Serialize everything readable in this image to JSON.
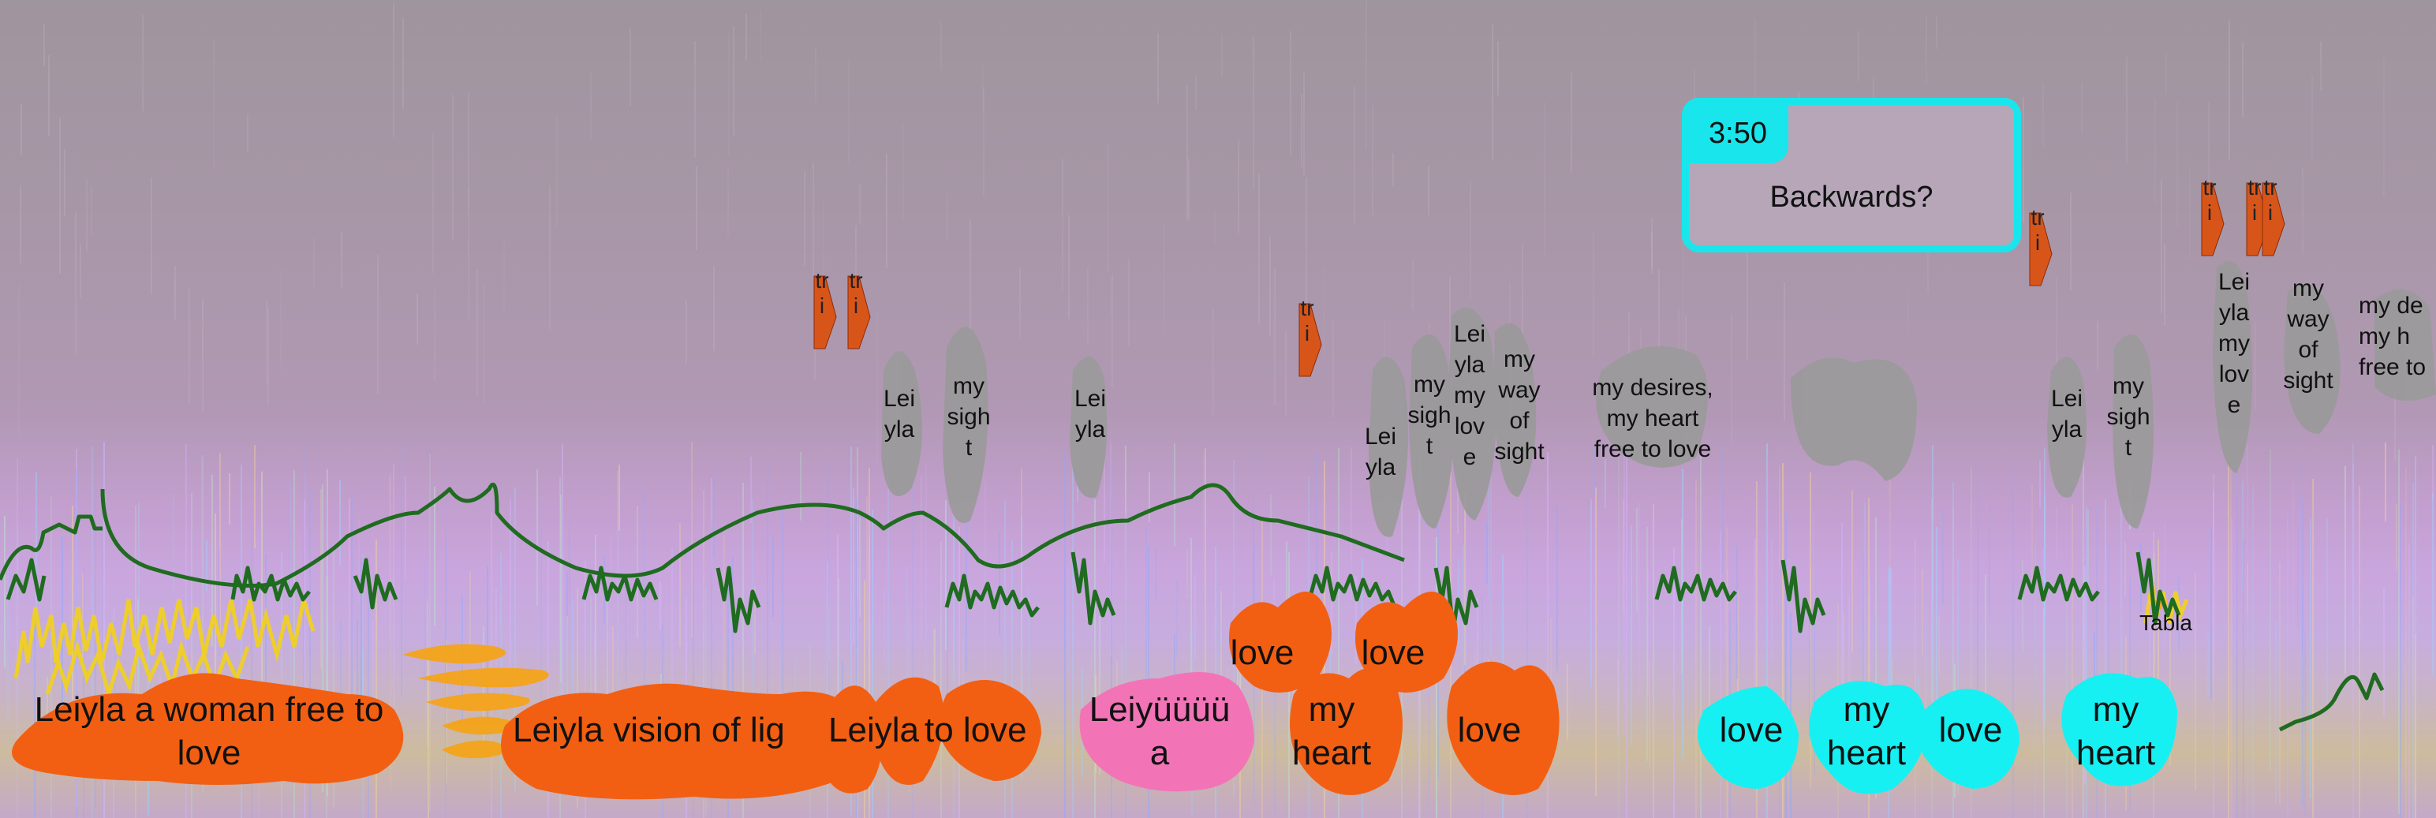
{
  "note": {
    "time": "3:50",
    "text": "Backwards?"
  },
  "trill_label": "tr\ni",
  "tabla_label": "Tabla",
  "gray_labels": {
    "leiyla_1": "Lei\nyla",
    "my_sight_1": "my\nsigh\nt",
    "leiyla_2": "Lei\nyla",
    "leiyla_3": "Lei\nyla",
    "my_sight_2": "my\nsigh\nt",
    "leiyla_my_love_1": "Lei\nyla\nmy\nlov\ne",
    "my_way_of_sight_1": "my\nway\nof\nsight",
    "my_desires": "my desires,\nmy heart\nfree to love",
    "leiyla_4": "Lei\nyla",
    "my_sight_3": "my\nsigh\nt",
    "leiyla_my_love_2": "Lei\nyla\nmy\nlov\ne",
    "my_way_of_sight_2": "my\nway\nof\nsight",
    "my_desires_cut": "my de\nmy h\nfree to"
  },
  "orange_labels": {
    "leiyla_woman": "Leiyla a woman free to\nlove",
    "leiyla_vision": "Leiyla vision of lig",
    "leiyla_to_love_a": "Leiyla",
    "leiyla_to_love_b": "to love",
    "leiyuuuu": "Leiyüüüü\na",
    "love_1": "love",
    "love_2": "love",
    "my_heart_1": "my\nheart",
    "love_3": "love"
  },
  "cyan_labels": {
    "love_1": "love",
    "my_heart_1": "my\nheart",
    "love_2": "love",
    "my_heart_2": "my\nheart"
  },
  "colors": {
    "orange": "#f25f12",
    "pink": "#f274b7",
    "cyan": "#17f0f2",
    "green": "#1f6b1f",
    "gray_blob": "#9a9a9a",
    "trill": "#d8551a",
    "yellow": "#f2d21a",
    "note_border": "#19e6ec"
  }
}
